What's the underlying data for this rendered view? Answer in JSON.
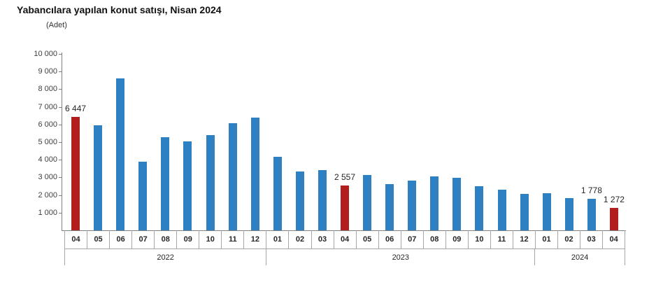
{
  "chart_data": {
    "type": "bar",
    "title": "Yabancılara yapılan konut satışı, Nisan 2024",
    "unit_label": "(Adet)",
    "xlabel": "",
    "ylabel": "Adet",
    "ylim": [
      0,
      10000
    ],
    "grid": false,
    "legend": "none",
    "colors": {
      "bar": "#2d80c2",
      "highlight": "#b21e1e"
    },
    "yticks": [
      {
        "value": 1000,
        "label": "1 000"
      },
      {
        "value": 2000,
        "label": "2 000"
      },
      {
        "value": 3000,
        "label": "3 000"
      },
      {
        "value": 4000,
        "label": "4 000"
      },
      {
        "value": 5000,
        "label": "5 000"
      },
      {
        "value": 6000,
        "label": "6 000"
      },
      {
        "value": 7000,
        "label": "7 000"
      },
      {
        "value": 8000,
        "label": "8 000"
      },
      {
        "value": 9000,
        "label": "9 000"
      },
      {
        "value": 10000,
        "label": "10 000"
      }
    ],
    "points": [
      {
        "year": "2022",
        "month": "04",
        "value": 6447,
        "label": "6 447",
        "highlight": true
      },
      {
        "year": "2022",
        "month": "05",
        "value": 5962,
        "label": null,
        "highlight": false
      },
      {
        "year": "2022",
        "month": "06",
        "value": 8630,
        "label": null,
        "highlight": false
      },
      {
        "year": "2022",
        "month": "07",
        "value": 3900,
        "label": null,
        "highlight": false
      },
      {
        "year": "2022",
        "month": "08",
        "value": 5273,
        "label": null,
        "highlight": false
      },
      {
        "year": "2022",
        "month": "09",
        "value": 5058,
        "label": null,
        "highlight": false
      },
      {
        "year": "2022",
        "month": "10",
        "value": 5377,
        "label": null,
        "highlight": false
      },
      {
        "year": "2022",
        "month": "11",
        "value": 6083,
        "label": null,
        "highlight": false
      },
      {
        "year": "2022",
        "month": "12",
        "value": 6386,
        "label": null,
        "highlight": false
      },
      {
        "year": "2023",
        "month": "01",
        "value": 4174,
        "label": null,
        "highlight": false
      },
      {
        "year": "2023",
        "month": "02",
        "value": 3350,
        "label": null,
        "highlight": false
      },
      {
        "year": "2023",
        "month": "03",
        "value": 3395,
        "label": null,
        "highlight": false
      },
      {
        "year": "2023",
        "month": "04",
        "value": 2557,
        "label": "2 557",
        "highlight": true
      },
      {
        "year": "2023",
        "month": "05",
        "value": 3138,
        "label": null,
        "highlight": false
      },
      {
        "year": "2023",
        "month": "06",
        "value": 2625,
        "label": null,
        "highlight": false
      },
      {
        "year": "2023",
        "month": "07",
        "value": 2801,
        "label": null,
        "highlight": false
      },
      {
        "year": "2023",
        "month": "08",
        "value": 3058,
        "label": null,
        "highlight": false
      },
      {
        "year": "2023",
        "month": "09",
        "value": 2963,
        "label": null,
        "highlight": false
      },
      {
        "year": "2023",
        "month": "10",
        "value": 2483,
        "label": null,
        "highlight": false
      },
      {
        "year": "2023",
        "month": "11",
        "value": 2297,
        "label": null,
        "highlight": false
      },
      {
        "year": "2023",
        "month": "12",
        "value": 2064,
        "label": null,
        "highlight": false
      },
      {
        "year": "2024",
        "month": "01",
        "value": 2095,
        "label": null,
        "highlight": false
      },
      {
        "year": "2024",
        "month": "02",
        "value": 1816,
        "label": null,
        "highlight": false
      },
      {
        "year": "2024",
        "month": "03",
        "value": 1778,
        "label": "1 778",
        "highlight": false
      },
      {
        "year": "2024",
        "month": "04",
        "value": 1272,
        "label": "1 272",
        "highlight": true
      }
    ],
    "year_groups": [
      "2022",
      "2023",
      "2024"
    ]
  }
}
